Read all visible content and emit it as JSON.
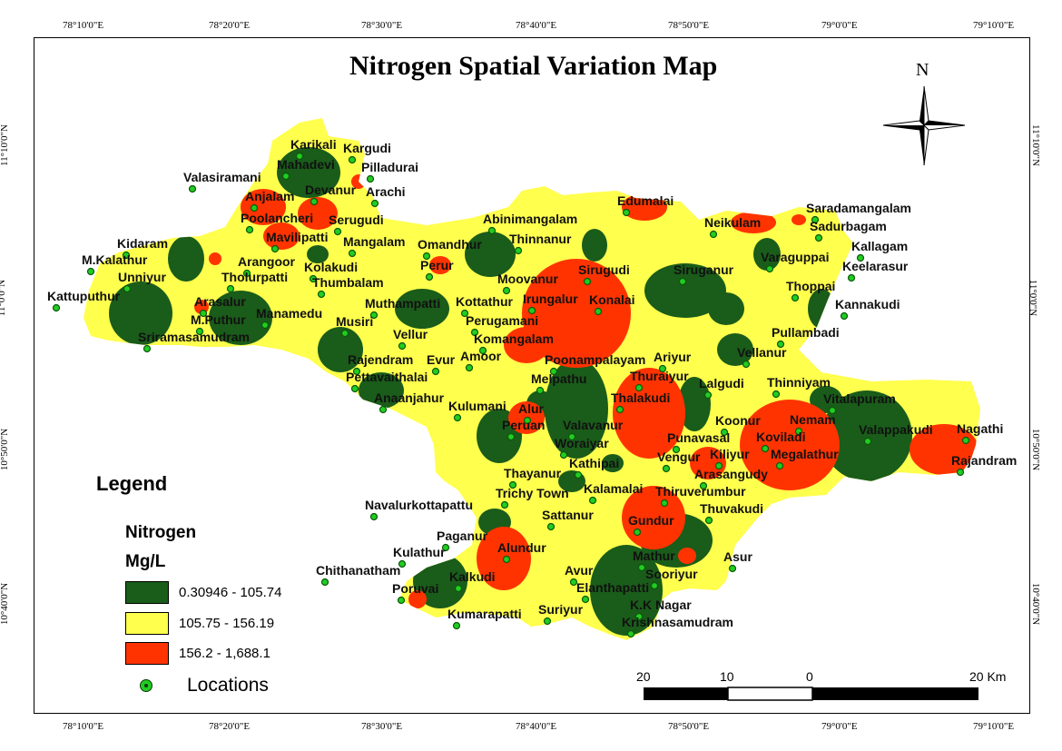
{
  "map": {
    "title": "Nitrogen Spatial Variation Map",
    "north_label": "N",
    "top_ticks": [
      "78°10'0\"E",
      "78°20'0\"E",
      "78°30'0\"E",
      "78°40'0\"E",
      "78°50'0\"E",
      "79°0'0\"E",
      "79°10'0\"E"
    ],
    "bottom_ticks": [
      "78°10'0\"E",
      "78°20'0\"E",
      "78°30'0\"E",
      "78°40'0\"E",
      "78°50'0\"E",
      "79°0'0\"E",
      "79°10'0\"E"
    ],
    "left_ticks": [
      "11°10'0\"N",
      "11°0'0\"N",
      "10°50'0\"N",
      "10°40'0\"N"
    ],
    "right_ticks": [
      "11°10'0\"N",
      "11°0'0\"N",
      "10°50'0\"N",
      "10°40'0\"N"
    ],
    "colors": {
      "low": "#1a5c1a",
      "mid": "#ffff4d",
      "high": "#ff3300",
      "point_fill": "#22cc22",
      "point_center": "#0a5a0a"
    }
  },
  "legend": {
    "title": "Legend",
    "parameter": "Nitrogen",
    "unit": "Mg/L",
    "classes": [
      {
        "label": "0.30946 - 105.74",
        "color": "#1a5c1a"
      },
      {
        "label": "105.75 - 156.19",
        "color": "#ffff4d"
      },
      {
        "label": "156.2 - 1,688.1",
        "color": "#ff3300"
      }
    ],
    "locations_label": "Locations"
  },
  "scale_bar": {
    "labels": [
      "20",
      "10",
      "0",
      "20 Km"
    ]
  },
  "locations": [
    "Karikali",
    "Kargudi",
    "Mahadevi",
    "Pilladurai",
    "Valasiramani",
    "Devanur",
    "Arachi",
    "Anjalam",
    "Poolancheri",
    "Serugudi",
    "Mavilipatti",
    "Mangalam",
    "Kidaram",
    "M.Kalathur",
    "Arangoor",
    "Kolakudi",
    "Omandhur",
    "Unniyur",
    "Tholurpatti",
    "Thumbalam",
    "Perur",
    "Kattuputhur",
    "Arasalur",
    "M.Puthur",
    "Manamedu",
    "Muthampatti",
    "Kottathur",
    "Irungalur",
    "Konalai",
    "Musiri",
    "Vellur",
    "Perugamani",
    "Komangalam",
    "Sriramasamudram",
    "Rajendram",
    "Evur",
    "Amoor",
    "Pettavaithalai",
    "Anaanjahur",
    "Melpathu",
    "Poonampalayam",
    "Ariyur",
    "Kulumani",
    "Alur",
    "Peruan",
    "Valavanur",
    "Woraiyar",
    "Kathipai",
    "Thayanur",
    "Trichy Town",
    "Kalamalai",
    "Navalurkottapattu",
    "Sattanur",
    "Gundur",
    "Paganur",
    "Alundur",
    "Mathur",
    "Kulathur",
    "Chithanatham",
    "Kalkudi",
    "Avur",
    "Elanthapatti",
    "Sooriyur",
    "Poruvai",
    "K.K Nagar",
    "Krishnasamudram",
    "Kumarapatti",
    "Suriyur",
    "Abinimangalam",
    "Thinnanur",
    "Edumalai",
    "Moovanur",
    "Sirugudi",
    "Siruganur",
    "Neikulam",
    "Saradamangalam",
    "Sadurbagam",
    "Kallagam",
    "Varaguppai",
    "Keelarasur",
    "Thoppai",
    "Kannakudi",
    "Pullambadi",
    "Vellanur",
    "Thuraiyur",
    "Thalakudi",
    "Lalgudi",
    "Thinniyam",
    "Vitalapuram",
    "Nemam",
    "Koonur",
    "Punavasal",
    "Koviladi",
    "Kiliyur",
    "Megalathur",
    "Valappakudi",
    "Nagathi",
    "Rajandram",
    "Vengur",
    "Arasangudy",
    "Thiruverumbur",
    "Thuvakudi",
    "Asur"
  ]
}
